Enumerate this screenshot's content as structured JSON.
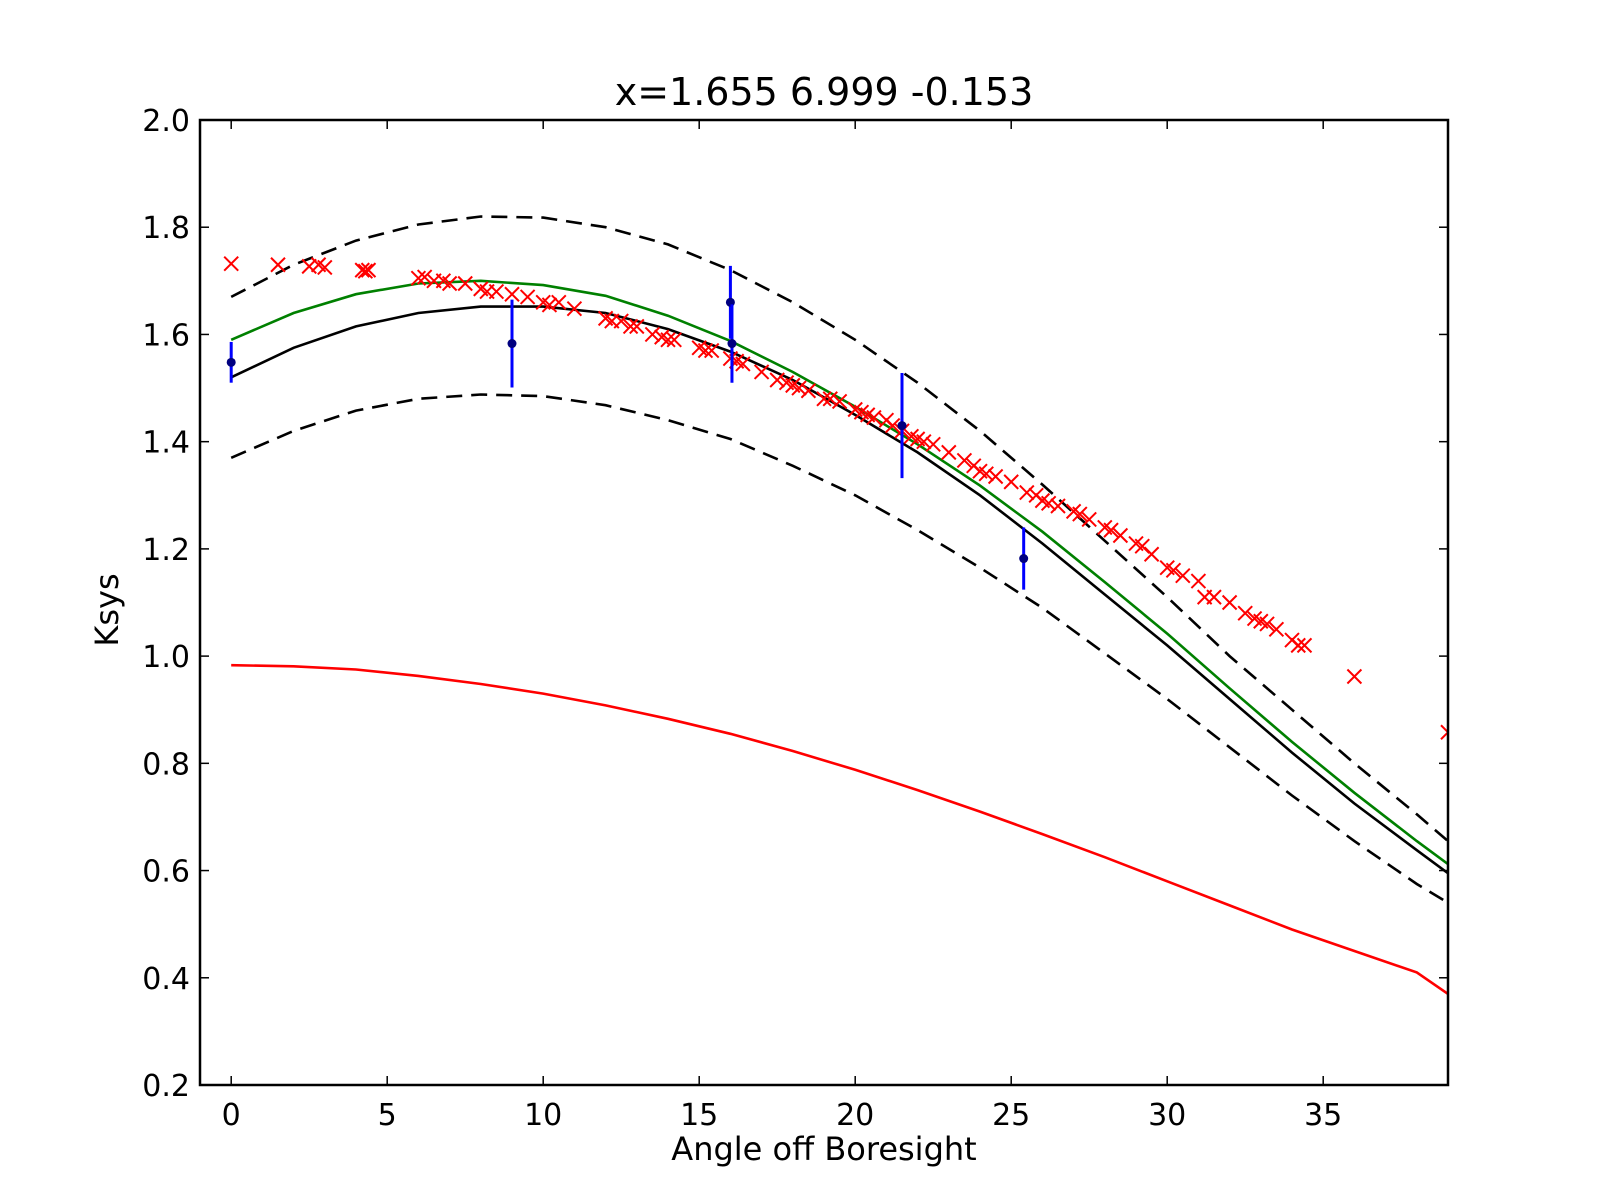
{
  "chart_data": {
    "type": "scatter",
    "title": "x=1.655 6.999 -0.153",
    "xlabel": "Angle off Boresight",
    "ylabel": "Ksys",
    "xlim": [
      -1,
      39
    ],
    "ylim": [
      0.2,
      2.0
    ],
    "xticks": [
      0,
      5,
      10,
      15,
      20,
      25,
      30,
      35
    ],
    "yticks": [
      0.2,
      0.4,
      0.6,
      0.8,
      1.0,
      1.2,
      1.4,
      1.6,
      1.8,
      2.0
    ],
    "xtick_labels": [
      "0",
      "5",
      "10",
      "15",
      "20",
      "25",
      "30",
      "35"
    ],
    "ytick_labels": [
      "0.2",
      "0.4",
      "0.6",
      "0.8",
      "1.0",
      "1.2",
      "1.4",
      "1.6",
      "1.8",
      "2.0"
    ],
    "grid": false,
    "legend": "none",
    "colors": {
      "fit": "#000000",
      "bounds": "#000000",
      "green_curve": "#008000",
      "red_curve": "#ff0000",
      "markers": "#ff0000",
      "errorbars": "#0000ff",
      "errorbar_points": "#000080"
    },
    "series": [
      {
        "style": "solid",
        "color": "#000000",
        "x": [
          0,
          2,
          4,
          6,
          8,
          10,
          12,
          14,
          16,
          18,
          20,
          22,
          24,
          26,
          28,
          30,
          32,
          34,
          36,
          38,
          39
        ],
        "y": [
          1.52,
          1.575,
          1.615,
          1.64,
          1.652,
          1.652,
          1.64,
          1.61,
          1.568,
          1.515,
          1.45,
          1.38,
          1.3,
          1.21,
          1.115,
          1.02,
          0.92,
          0.82,
          0.725,
          0.638,
          0.595
        ]
      },
      {
        "style": "solid",
        "color": "#008000",
        "x": [
          0,
          2,
          4,
          6,
          8,
          10,
          12,
          14,
          16,
          18,
          20,
          22,
          24,
          26,
          28,
          30,
          32,
          34,
          36,
          38,
          39
        ],
        "y": [
          1.59,
          1.64,
          1.675,
          1.695,
          1.7,
          1.692,
          1.672,
          1.635,
          1.588,
          1.53,
          1.465,
          1.395,
          1.318,
          1.232,
          1.138,
          1.042,
          0.94,
          0.84,
          0.745,
          0.655,
          0.612
        ]
      },
      {
        "style": "dashed",
        "color": "#000000",
        "x": [
          0,
          2,
          4,
          6,
          8,
          10,
          12,
          14,
          16,
          18,
          20,
          22,
          24,
          26,
          28,
          30,
          32,
          34,
          36,
          38,
          39
        ],
        "y": [
          1.67,
          1.73,
          1.775,
          1.805,
          1.82,
          1.818,
          1.8,
          1.768,
          1.72,
          1.66,
          1.59,
          1.51,
          1.42,
          1.32,
          1.215,
          1.11,
          1.0,
          0.9,
          0.8,
          0.705,
          0.655
        ]
      },
      {
        "style": "dashed",
        "color": "#000000",
        "x": [
          0,
          2,
          4,
          6,
          8,
          10,
          12,
          14,
          16,
          18,
          20,
          22,
          24,
          26,
          28,
          30,
          32,
          34,
          36,
          38,
          39
        ],
        "y": [
          1.37,
          1.42,
          1.458,
          1.48,
          1.488,
          1.485,
          1.468,
          1.44,
          1.405,
          1.355,
          1.3,
          1.235,
          1.165,
          1.09,
          1.005,
          0.92,
          0.83,
          0.74,
          0.655,
          0.575,
          0.54
        ]
      },
      {
        "style": "solid",
        "color": "#ff0000",
        "x": [
          0,
          2,
          4,
          6,
          8,
          10,
          12,
          14,
          16,
          18,
          20,
          22,
          24,
          26,
          28,
          30,
          32,
          34,
          36,
          38,
          39
        ],
        "y": [
          0.983,
          0.981,
          0.975,
          0.963,
          0.948,
          0.93,
          0.908,
          0.883,
          0.855,
          0.823,
          0.788,
          0.75,
          0.71,
          0.668,
          0.625,
          0.58,
          0.535,
          0.49,
          0.45,
          0.41,
          0.37
        ]
      }
    ],
    "markers": {
      "x": [
        0,
        1.5,
        2.5,
        2.8,
        3.0,
        4.2,
        4.3,
        4.4,
        6.0,
        6.2,
        6.5,
        6.8,
        7.0,
        7.5,
        8.0,
        8.2,
        8.5,
        9.0,
        9.5,
        10.0,
        10.2,
        10.5,
        11.0,
        12.0,
        12.2,
        12.5,
        12.8,
        13.0,
        13.5,
        13.8,
        14.0,
        14.2,
        15.0,
        15.2,
        15.4,
        16.0,
        16.2,
        16.4,
        17.0,
        17.5,
        17.8,
        18.0,
        18.2,
        18.5,
        19.0,
        19.2,
        19.5,
        20.0,
        20.2,
        20.4,
        20.6,
        21.0,
        21.2,
        21.5,
        21.8,
        22.0,
        22.2,
        22.5,
        23.0,
        23.5,
        23.8,
        24.0,
        24.2,
        24.5,
        25.0,
        25.5,
        25.8,
        26.0,
        26.2,
        26.5,
        27.0,
        27.2,
        27.5,
        28.0,
        28.2,
        28.5,
        29.0,
        29.2,
        29.5,
        30.0,
        30.2,
        30.5,
        31.0,
        31.2,
        31.5,
        32.0,
        32.5,
        32.8,
        33.0,
        33.2,
        33.5,
        34.0,
        34.2,
        34.4,
        36.0,
        39.0
      ],
      "y": [
        1.732,
        1.73,
        1.727,
        1.73,
        1.725,
        1.72,
        1.718,
        1.72,
        1.705,
        1.707,
        1.7,
        1.7,
        1.695,
        1.695,
        1.685,
        1.68,
        1.68,
        1.675,
        1.67,
        1.66,
        1.655,
        1.66,
        1.648,
        1.63,
        1.625,
        1.625,
        1.615,
        1.615,
        1.6,
        1.595,
        1.59,
        1.59,
        1.575,
        1.57,
        1.57,
        1.555,
        1.55,
        1.545,
        1.53,
        1.515,
        1.51,
        1.505,
        1.5,
        1.495,
        1.48,
        1.48,
        1.475,
        1.46,
        1.455,
        1.45,
        1.445,
        1.44,
        1.43,
        1.42,
        1.41,
        1.405,
        1.4,
        1.395,
        1.38,
        1.365,
        1.355,
        1.345,
        1.34,
        1.335,
        1.325,
        1.305,
        1.3,
        1.29,
        1.285,
        1.28,
        1.27,
        1.265,
        1.255,
        1.24,
        1.235,
        1.225,
        1.21,
        1.205,
        1.19,
        1.165,
        1.16,
        1.15,
        1.14,
        1.11,
        1.11,
        1.1,
        1.08,
        1.07,
        1.065,
        1.06,
        1.05,
        1.03,
        1.02,
        1.02,
        0.962,
        0.858
      ]
    },
    "errorbars": {
      "x": [
        0,
        9,
        16.0,
        16.05,
        21.5,
        25.4
      ],
      "y": [
        1.548,
        1.583,
        1.66,
        1.583,
        1.43,
        1.182
      ],
      "yerr": [
        0.038,
        0.082,
        0.068,
        0.073,
        0.098,
        0.058
      ]
    }
  }
}
